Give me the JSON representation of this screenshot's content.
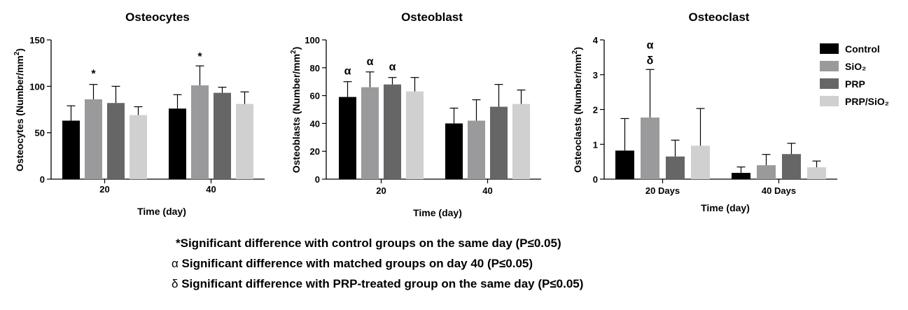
{
  "colors": {
    "series": [
      "#000000",
      "#9a9a9c",
      "#666666",
      "#d0d0d0"
    ],
    "axis": "#000000"
  },
  "legend": {
    "placement": "right",
    "items": [
      "Control",
      "SiO₂",
      "PRP",
      "PRP/SiO₂"
    ]
  },
  "chart_data": [
    {
      "type": "bar",
      "title": "Osteocytes",
      "xlabel": "Time (day)",
      "ylabel": "Osteocytes (Number/mm²)",
      "ylim": [
        0,
        150
      ],
      "yticks": [
        0,
        50,
        100,
        150
      ],
      "categories": [
        "20",
        "40"
      ],
      "series": [
        {
          "name": "Control",
          "values": [
            63,
            76
          ],
          "errors": [
            16,
            15
          ]
        },
        {
          "name": "SiO₂",
          "values": [
            86,
            101
          ],
          "errors": [
            16,
            21
          ]
        },
        {
          "name": "PRP",
          "values": [
            82,
            93
          ],
          "errors": [
            18,
            6
          ]
        },
        {
          "name": "PRP/SiO₂",
          "values": [
            69,
            81
          ],
          "errors": [
            9,
            13
          ]
        }
      ],
      "annotations": [
        {
          "text": "*",
          "category": 0,
          "series": 1
        },
        {
          "text": "*",
          "category": 1,
          "series": 1
        }
      ]
    },
    {
      "type": "bar",
      "title": "Osteoblast",
      "xlabel": "Time (day)",
      "ylabel": "Osteoblasts (Number/mm²)",
      "ylim": [
        0,
        100
      ],
      "yticks": [
        0,
        20,
        40,
        60,
        80,
        100
      ],
      "categories": [
        "20",
        "40"
      ],
      "series": [
        {
          "name": "Control",
          "values": [
            59,
            40
          ],
          "errors": [
            11,
            11
          ]
        },
        {
          "name": "SiO₂",
          "values": [
            66,
            42
          ],
          "errors": [
            11,
            15
          ]
        },
        {
          "name": "PRP",
          "values": [
            68,
            52
          ],
          "errors": [
            5,
            16
          ]
        },
        {
          "name": "PRP/SiO₂",
          "values": [
            63,
            54
          ],
          "errors": [
            10,
            10
          ]
        }
      ],
      "annotations": [
        {
          "text": "α",
          "category": 0,
          "series": 0
        },
        {
          "text": "α",
          "category": 0,
          "series": 1
        },
        {
          "text": "α",
          "category": 0,
          "series": 2
        }
      ]
    },
    {
      "type": "bar",
      "title": "Osteoclast",
      "xlabel": "Time (day)",
      "ylabel": "Osteoclasts (Number/mm²)",
      "ylim": [
        0,
        4
      ],
      "yticks": [
        0,
        1,
        2,
        3,
        4
      ],
      "categories": [
        "20 Days",
        "40 Days"
      ],
      "series": [
        {
          "name": "Control",
          "values": [
            0.82,
            0.18
          ],
          "errors": [
            0.92,
            0.17
          ]
        },
        {
          "name": "SiO₂",
          "values": [
            1.77,
            0.4
          ],
          "errors": [
            1.38,
            0.31
          ]
        },
        {
          "name": "PRP",
          "values": [
            0.65,
            0.72
          ],
          "errors": [
            0.47,
            0.31
          ]
        },
        {
          "name": "PRP/SiO₂",
          "values": [
            0.96,
            0.34
          ],
          "errors": [
            1.07,
            0.18
          ]
        }
      ],
      "annotations": [
        {
          "text": "α",
          "category": 0,
          "series": 1
        },
        {
          "text": "δ",
          "category": 0,
          "series": 1
        }
      ]
    }
  ],
  "notes": [
    {
      "symbol": "*",
      "text": "Significant difference with control groups on the same day (P≤0.05)"
    },
    {
      "symbol": "α",
      "text": " Significant difference with matched groups on day 40 (P≤0.05)"
    },
    {
      "symbol": "δ",
      "text": " Significant difference with PRP-treated group on the same day (P≤0.05)"
    }
  ]
}
